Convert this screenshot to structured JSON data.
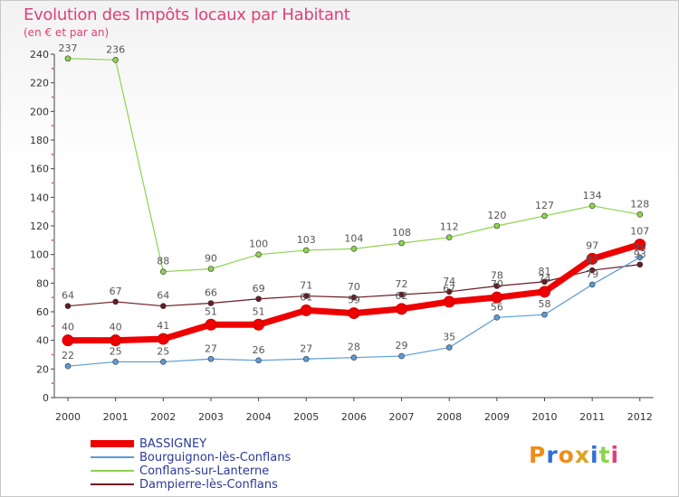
{
  "chart_data": {
    "type": "line",
    "title": "Evolution des Impôts locaux par Habitant",
    "subtitle": "(en € et par an)",
    "xlabel": "",
    "ylabel": "",
    "categories": [
      "2000",
      "2001",
      "2002",
      "2003",
      "2004",
      "2005",
      "2006",
      "2007",
      "2008",
      "2009",
      "2010",
      "2011",
      "2012"
    ],
    "ylim": [
      0,
      240
    ],
    "yticks": [
      0,
      20,
      40,
      60,
      80,
      100,
      120,
      140,
      160,
      180,
      200,
      220,
      240
    ],
    "grid": false,
    "legend_position": "bottom-left",
    "series": [
      {
        "name": "Dampierre-lès-Conflans",
        "color": "#6b1a22",
        "values": [
          64,
          67,
          64,
          66,
          69,
          71,
          70,
          72,
          74,
          78,
          81,
          89,
          93
        ]
      },
      {
        "name": "Bourguignon-lès-Conflans",
        "color": "#5b9bd5",
        "values": [
          22,
          25,
          25,
          27,
          26,
          27,
          28,
          29,
          35,
          56,
          58,
          79,
          98
        ]
      },
      {
        "name": "Conflans-sur-Lanterne",
        "color": "#8ed34e",
        "values": [
          237,
          236,
          88,
          90,
          100,
          103,
          104,
          108,
          112,
          120,
          127,
          134,
          128
        ]
      },
      {
        "name": "BASSIGNEY",
        "color": "#ee0000",
        "values": [
          40,
          40,
          41,
          51,
          51,
          61,
          59,
          62,
          67,
          70,
          74,
          97,
          107
        ]
      }
    ],
    "legend_order": [
      "BASSIGNEY",
      "Bourguignon-lès-Conflans",
      "Conflans-sur-Lanterne",
      "Dampierre-lès-Conflans"
    ]
  },
  "logo": {
    "text": "Proxiti",
    "letter_colors": [
      "#f08c1c",
      "#2f6fd6",
      "#f08c1c",
      "#e0a020",
      "#2f6fd6",
      "#8ed34e",
      "#e0407a"
    ]
  }
}
